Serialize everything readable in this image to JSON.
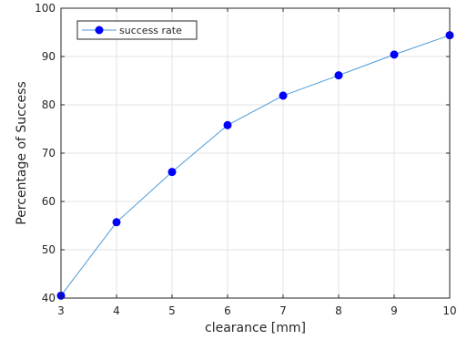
{
  "chart_data": {
    "type": "line",
    "title": "",
    "xlabel": "clearance [mm]",
    "ylabel": "Percentage of Success",
    "xlim": [
      3,
      10
    ],
    "ylim": [
      40,
      100
    ],
    "xticks": [
      3,
      4,
      5,
      6,
      7,
      8,
      9,
      10
    ],
    "yticks": [
      40,
      50,
      60,
      70,
      80,
      90,
      100
    ],
    "grid": true,
    "legend_position": "top-left",
    "series": [
      {
        "name": "success rate",
        "color": "#4a9ad8",
        "marker_color": "#0000ff",
        "x": [
          3,
          4,
          5,
          6,
          7,
          8,
          9,
          10
        ],
        "y": [
          40.5,
          55.7,
          66.1,
          75.8,
          81.9,
          86.1,
          90.4,
          94.4
        ]
      }
    ]
  }
}
